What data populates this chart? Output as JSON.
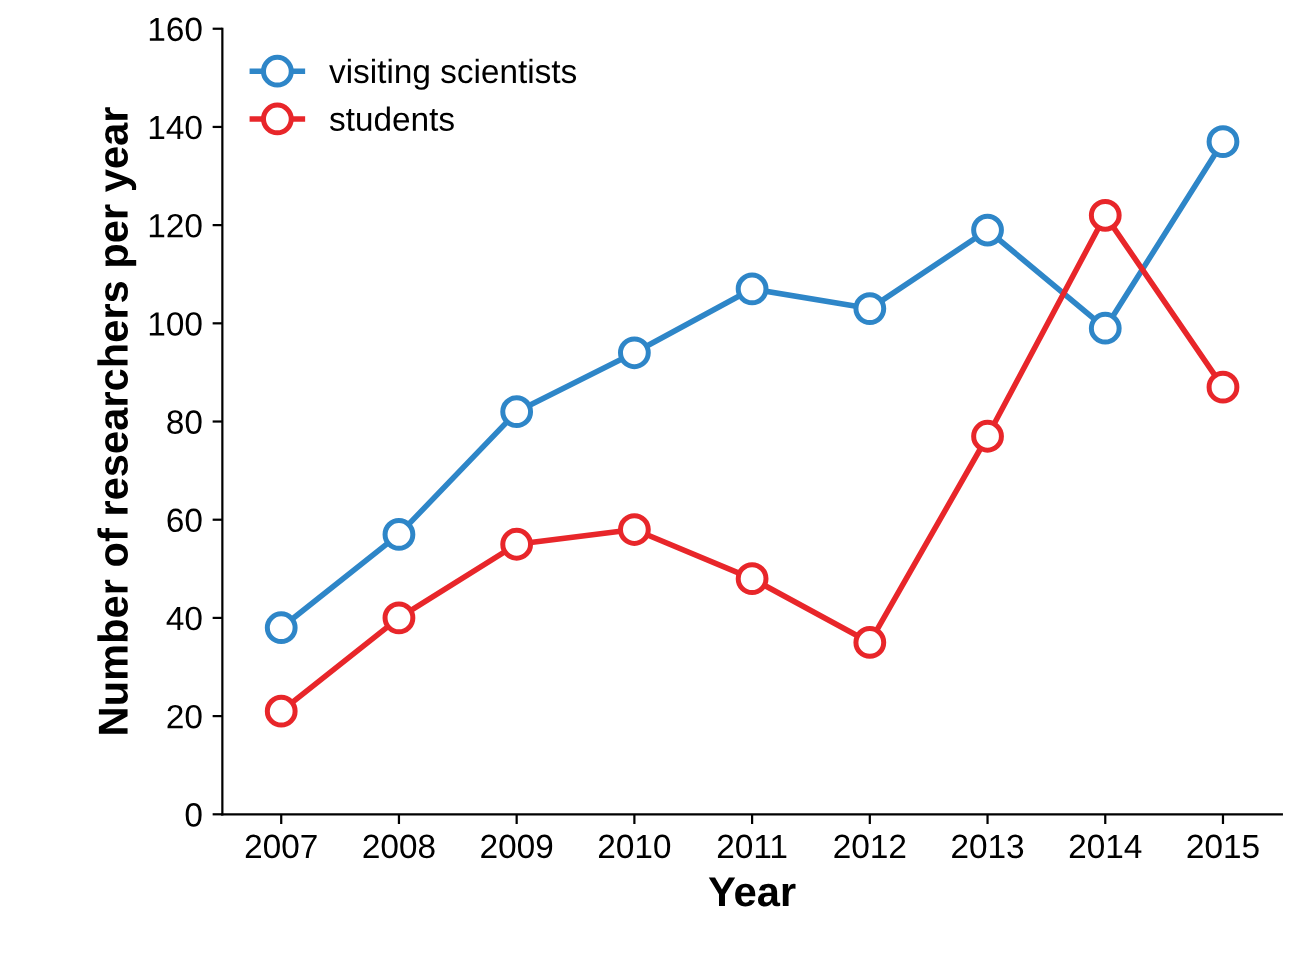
{
  "chart_data": {
    "type": "line",
    "xlabel": "Year",
    "ylabel": "Number of researchers per year",
    "categories": [
      "2007",
      "2008",
      "2009",
      "2010",
      "2011",
      "2012",
      "2013",
      "2014",
      "2015"
    ],
    "series": [
      {
        "name": "visiting scientists",
        "color": "#2e86c8",
        "values": [
          38,
          57,
          82,
          94,
          107,
          103,
          119,
          99,
          137
        ]
      },
      {
        "name": "students",
        "color": "#e8262a",
        "values": [
          21,
          40,
          55,
          58,
          48,
          35,
          77,
          122,
          87
        ]
      }
    ],
    "ylim": [
      0,
      160
    ],
    "yticks": [
      0,
      20,
      40,
      60,
      80,
      100,
      120,
      140,
      160
    ],
    "grid": false,
    "legend": "top left",
    "marker": "circle",
    "line_style": "solid"
  }
}
